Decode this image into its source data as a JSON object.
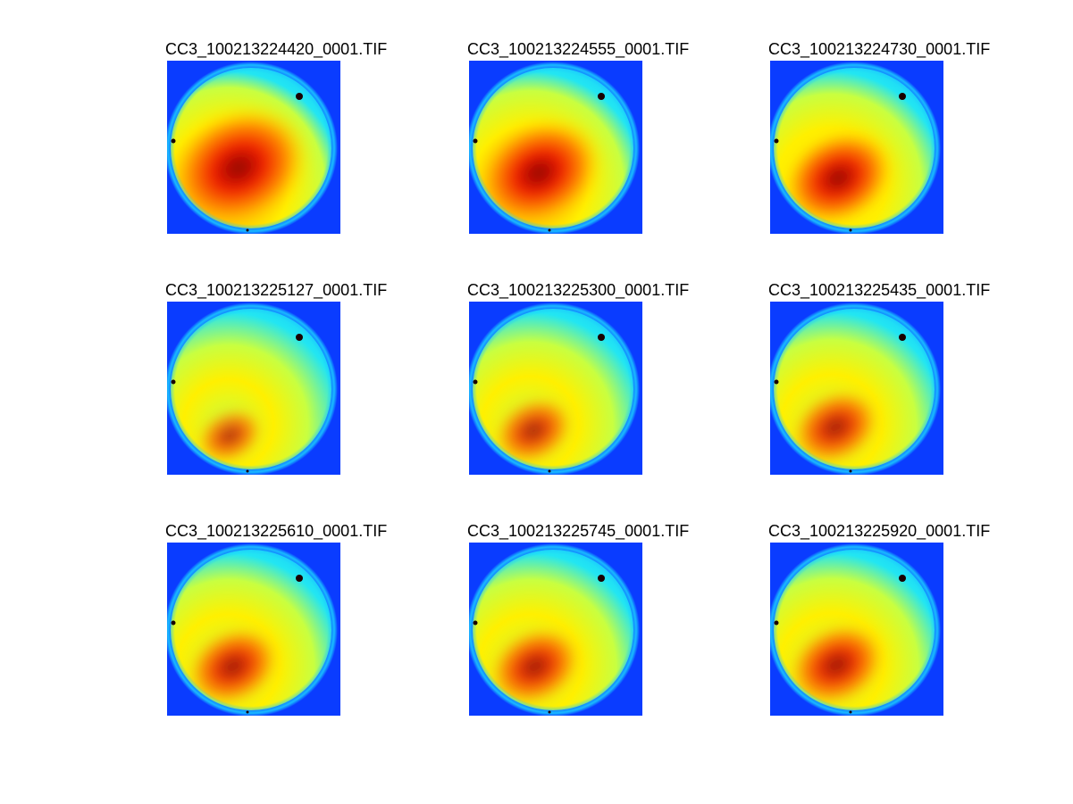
{
  "colors": {
    "background": "#0A3CFF",
    "disk_edge": "#1AC8FF",
    "cyan": "#22E6F2",
    "yellow_green": "#C8FF40",
    "yellow": "#FFF000",
    "orange": "#FF8A00",
    "red": "#F02000",
    "dark_red": "#8C0000",
    "black_spot": "#1A0000"
  },
  "panels": [
    {
      "title": "CC3_100213224420_0001.TIF",
      "intensity": 1.0
    },
    {
      "title": "CC3_100213224555_0001.TIF",
      "intensity": 0.85
    },
    {
      "title": "CC3_100213224730_0001.TIF",
      "intensity": 0.7
    },
    {
      "title": "CC3_100213225127_0001.TIF",
      "intensity": 0.2
    },
    {
      "title": "CC3_100213225300_0001.TIF",
      "intensity": 0.35
    },
    {
      "title": "CC3_100213225435_0001.TIF",
      "intensity": 0.45
    },
    {
      "title": "CC3_100213225610_0001.TIF",
      "intensity": 0.5
    },
    {
      "title": "CC3_100213225745_0001.TIF",
      "intensity": 0.5
    },
    {
      "title": "CC3_100213225920_0001.TIF",
      "intensity": 0.55
    }
  ]
}
